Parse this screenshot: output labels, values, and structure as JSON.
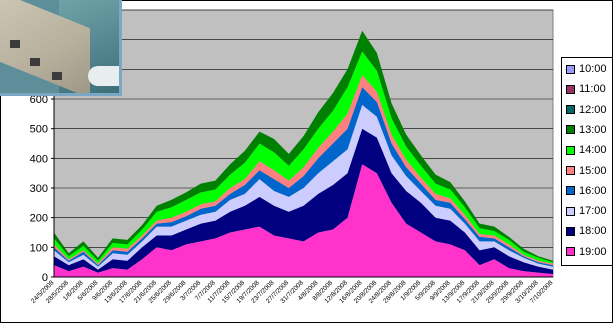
{
  "chart_data": {
    "type": "area",
    "stacked": true,
    "ylim": [
      0,
      900
    ],
    "yticks": [
      0,
      100,
      200,
      300,
      400,
      500,
      600
    ],
    "grid": true,
    "legend_position": "right",
    "plot_background": "#c0c0c0",
    "x": [
      "24/5/2008",
      "28/5/2008",
      "1/6/2008",
      "5/6/2008",
      "9/6/2008",
      "13/6/2008",
      "17/6/2008",
      "21/6/2008",
      "25/6/2008",
      "29/6/2008",
      "3/7/2008",
      "7/7/2008",
      "11/7/2008",
      "15/7/2008",
      "19/7/2008",
      "23/7/2008",
      "27/7/2008",
      "31/7/2008",
      "4/8/2008",
      "8/8/2008",
      "12/8/2008",
      "16/8/2008",
      "20/8/2008",
      "24/8/2008",
      "28/8/2008",
      "1/9/2008",
      "5/9/2008",
      "9/9/2008",
      "13/9/2008",
      "17/9/2008",
      "21/9/2008",
      "25/9/2008",
      "29/9/2008",
      "3/10/2008",
      "7/10/2008"
    ],
    "series": [
      {
        "name": "19:00",
        "color": "#ff33cc",
        "values": [
          40,
          20,
          35,
          15,
          30,
          25,
          60,
          100,
          90,
          110,
          120,
          130,
          150,
          160,
          170,
          140,
          130,
          120,
          150,
          160,
          200,
          380,
          350,
          250,
          180,
          150,
          120,
          110,
          90,
          40,
          60,
          30,
          20,
          15,
          10
        ]
      },
      {
        "name": "18:00",
        "color": "#000080",
        "values": [
          30,
          20,
          25,
          10,
          30,
          30,
          40,
          40,
          50,
          50,
          60,
          60,
          70,
          80,
          100,
          100,
          90,
          120,
          130,
          150,
          150,
          120,
          120,
          100,
          110,
          100,
          80,
          80,
          60,
          50,
          40,
          40,
          30,
          20,
          15
        ]
      },
      {
        "name": "17:00",
        "color": "#ccccff",
        "values": [
          20,
          10,
          15,
          10,
          20,
          20,
          20,
          30,
          30,
          30,
          30,
          30,
          40,
          40,
          60,
          50,
          50,
          60,
          70,
          80,
          80,
          80,
          70,
          60,
          50,
          40,
          40,
          40,
          30,
          30,
          20,
          20,
          15,
          10,
          10
        ]
      },
      {
        "name": "16:00",
        "color": "#0066cc",
        "values": [
          10,
          5,
          10,
          5,
          10,
          10,
          10,
          10,
          15,
          15,
          20,
          20,
          20,
          30,
          30,
          40,
          30,
          40,
          50,
          60,
          70,
          60,
          50,
          40,
          30,
          25,
          20,
          20,
          15,
          15,
          10,
          10,
          5,
          5,
          5
        ]
      },
      {
        "name": "15:00",
        "color": "#ff8080",
        "values": [
          10,
          5,
          5,
          5,
          10,
          10,
          10,
          10,
          15,
          15,
          15,
          15,
          20,
          20,
          30,
          30,
          25,
          30,
          35,
          40,
          50,
          40,
          35,
          30,
          25,
          20,
          20,
          15,
          15,
          10,
          10,
          10,
          5,
          5,
          5
        ]
      },
      {
        "name": "14:00",
        "color": "#00ff00",
        "values": [
          20,
          10,
          15,
          10,
          15,
          15,
          20,
          30,
          35,
          40,
          40,
          40,
          45,
          55,
          60,
          60,
          50,
          60,
          65,
          70,
          90,
          80,
          70,
          55,
          45,
          40,
          35,
          30,
          25,
          20,
          15,
          15,
          10,
          10,
          5
        ]
      },
      {
        "name": "13:00",
        "color": "#008000",
        "values": [
          20,
          10,
          15,
          10,
          15,
          15,
          15,
          20,
          25,
          25,
          30,
          30,
          35,
          40,
          40,
          45,
          40,
          45,
          55,
          60,
          60,
          70,
          60,
          50,
          40,
          35,
          30,
          25,
          20,
          15,
          15,
          10,
          10,
          5,
          5
        ]
      },
      {
        "name": "12:00",
        "color": "#006666",
        "values": [
          0,
          0,
          0,
          0,
          0,
          0,
          0,
          0,
          0,
          0,
          0,
          0,
          0,
          0,
          0,
          0,
          0,
          0,
          0,
          0,
          0,
          0,
          0,
          0,
          0,
          0,
          0,
          0,
          0,
          0,
          0,
          0,
          0,
          0,
          0
        ]
      },
      {
        "name": "11:00",
        "color": "#993366",
        "values": [
          0,
          0,
          0,
          0,
          0,
          0,
          0,
          0,
          0,
          0,
          0,
          0,
          0,
          0,
          0,
          0,
          0,
          0,
          0,
          0,
          0,
          0,
          0,
          0,
          0,
          0,
          0,
          0,
          0,
          0,
          0,
          0,
          0,
          0,
          0
        ]
      },
      {
        "name": "10:00",
        "color": "#9999ff",
        "values": [
          0,
          0,
          0,
          0,
          0,
          0,
          0,
          0,
          0,
          0,
          0,
          0,
          0,
          0,
          0,
          0,
          0,
          0,
          0,
          0,
          0,
          0,
          0,
          0,
          0,
          0,
          0,
          0,
          0,
          0,
          0,
          0,
          0,
          0,
          0
        ]
      }
    ]
  }
}
